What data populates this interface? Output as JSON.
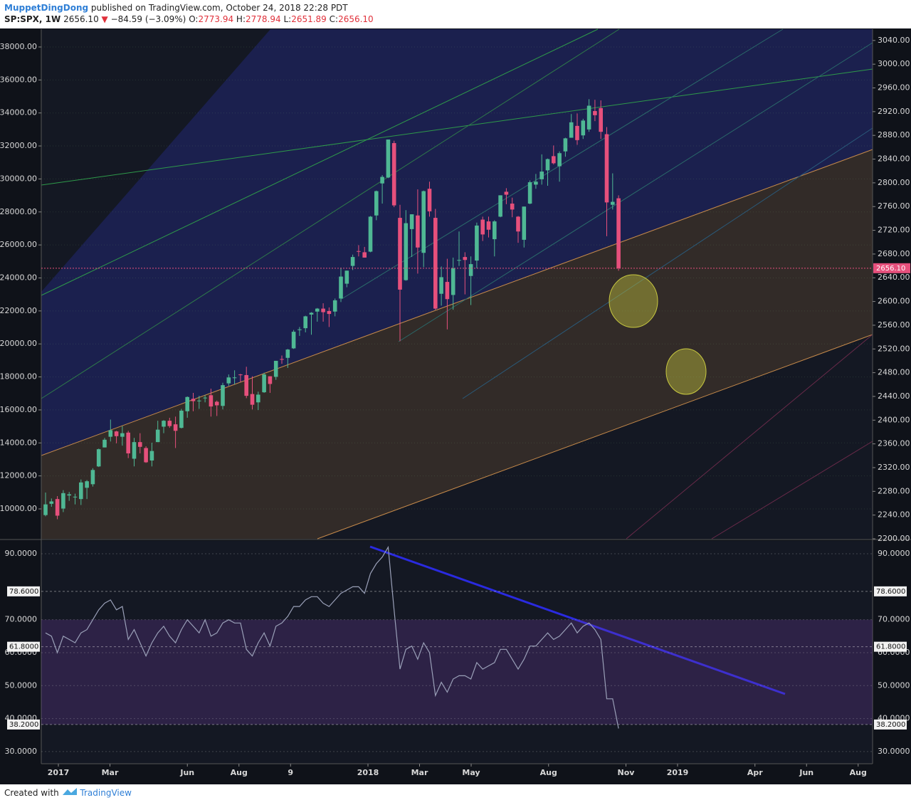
{
  "header": {
    "author": "MuppetDingDong",
    "published": "published on TradingView.com, October 24, 2018 22:28 PDT",
    "symbol": "SP:SPX, 1W",
    "last": "2656.10",
    "arrow": "▼",
    "change": "−84.59 (−3.09%)",
    "o_label": "O:",
    "o": "2773.94",
    "h_label": "H:",
    "h": "2778.94",
    "l_label": "L:",
    "l": "2651.89",
    "c_label": "C:",
    "c": "2656.10"
  },
  "footer": {
    "created": "Created with",
    "brand": "TradingView"
  },
  "chart_data": [
    {
      "type": "candlestick",
      "up_color": "#4fb894",
      "down_color": "#e6507c",
      "x": [
        "2016-12",
        "2016-12",
        "2016-12",
        "2017-01",
        "2017-01",
        "2017-01",
        "2017-01",
        "2017-02",
        "2017-02",
        "2017-02",
        "2017-02",
        "2017-03",
        "2017-03",
        "2017-03",
        "2017-03",
        "2017-03",
        "2017-04",
        "2017-04",
        "2017-04",
        "2017-04",
        "2017-05",
        "2017-05",
        "2017-05",
        "2017-05",
        "2017-06",
        "2017-06",
        "2017-06",
        "2017-06",
        "2017-06",
        "2017-07",
        "2017-07",
        "2017-07",
        "2017-07",
        "2017-08",
        "2017-08",
        "2017-08",
        "2017-08",
        "2017-09",
        "2017-09",
        "2017-09",
        "2017-09",
        "2017-09",
        "2017-10",
        "2017-10",
        "2017-10",
        "2017-10",
        "2017-11",
        "2017-11",
        "2017-11",
        "2017-11",
        "2017-12",
        "2017-12",
        "2017-12",
        "2017-12",
        "2017-12",
        "2018-01",
        "2018-01",
        "2018-01",
        "2018-01",
        "2018-02",
        "2018-02",
        "2018-02",
        "2018-02",
        "2018-03",
        "2018-03",
        "2018-03",
        "2018-03",
        "2018-03",
        "2018-04",
        "2018-04",
        "2018-04",
        "2018-04",
        "2018-05",
        "2018-05",
        "2018-05",
        "2018-05",
        "2018-06",
        "2018-06",
        "2018-06",
        "2018-06",
        "2018-06",
        "2018-07",
        "2018-07",
        "2018-07",
        "2018-07",
        "2018-08",
        "2018-08",
        "2018-08",
        "2018-08",
        "2018-08",
        "2018-09",
        "2018-09",
        "2018-09",
        "2018-09",
        "2018-10",
        "2018-10",
        "2018-10",
        "2018-10"
      ],
      "open": [
        2240,
        2259,
        2267,
        2251,
        2273,
        2270,
        2267,
        2286,
        2292,
        2322,
        2354,
        2372,
        2381,
        2372,
        2379,
        2335,
        2363,
        2353,
        2332,
        2363,
        2389,
        2399,
        2393,
        2387,
        2415,
        2436,
        2432,
        2438,
        2442,
        2431,
        2424,
        2462,
        2472,
        2477,
        2476,
        2444,
        2430,
        2447,
        2474,
        2473,
        2503,
        2505,
        2521,
        2552,
        2555,
        2578,
        2583,
        2588,
        2584,
        2583,
        2605,
        2630,
        2660,
        2685,
        2683,
        2684,
        2745,
        2799,
        2809,
        2867,
        2741,
        2636,
        2722,
        2745,
        2682,
        2790,
        2741,
        2613,
        2633,
        2611,
        2670,
        2675,
        2643,
        2669,
        2738,
        2735,
        2705,
        2743,
        2785,
        2765,
        2743,
        2704,
        2765,
        2797,
        2806,
        2821,
        2845,
        2828,
        2853,
        2876,
        2896,
        2880,
        2890,
        2921,
        2926,
        2882,
        2763,
        2773.94
      ],
      "high": [
        2278,
        2268,
        2272,
        2282,
        2279,
        2276,
        2300,
        2299,
        2319,
        2352,
        2370,
        2401,
        2382,
        2390,
        2382,
        2370,
        2378,
        2356,
        2362,
        2399,
        2400,
        2404,
        2406,
        2419,
        2440,
        2446,
        2441,
        2442,
        2453,
        2433,
        2463,
        2477,
        2484,
        2478,
        2490,
        2474,
        2448,
        2480,
        2474,
        2500,
        2509,
        2520,
        2552,
        2557,
        2576,
        2582,
        2589,
        2597,
        2590,
        2605,
        2657,
        2652,
        2679,
        2695,
        2692,
        2744,
        2787,
        2813,
        2873,
        2871,
        2763,
        2754,
        2747,
        2789,
        2787,
        2802,
        2756,
        2659,
        2672,
        2674,
        2718,
        2683,
        2676,
        2733,
        2743,
        2743,
        2737,
        2779,
        2791,
        2775,
        2744,
        2760,
        2804,
        2815,
        2848,
        2841,
        2863,
        2853,
        2876,
        2916,
        2917,
        2908,
        2941,
        2940,
        2939,
        2894,
        2816,
        2778.94
      ],
      "low": [
        2238,
        2254,
        2233,
        2245,
        2264,
        2258,
        2257,
        2267,
        2288,
        2321,
        2354,
        2364,
        2361,
        2357,
        2336,
        2322,
        2344,
        2328,
        2322,
        2363,
        2378,
        2387,
        2353,
        2386,
        2404,
        2415,
        2419,
        2430,
        2406,
        2407,
        2418,
        2458,
        2460,
        2464,
        2437,
        2418,
        2417,
        2446,
        2446,
        2468,
        2495,
        2488,
        2520,
        2542,
        2548,
        2544,
        2566,
        2566,
        2557,
        2575,
        2599,
        2624,
        2653,
        2676,
        2674,
        2683,
        2737,
        2765,
        2808,
        2759,
        2533,
        2635,
        2675,
        2647,
        2658,
        2743,
        2586,
        2593,
        2553,
        2586,
        2660,
        2612,
        2594,
        2656,
        2702,
        2708,
        2676,
        2742,
        2764,
        2742,
        2699,
        2691,
        2764,
        2790,
        2797,
        2795,
        2831,
        2802,
        2844,
        2876,
        2864,
        2874,
        2886,
        2904,
        2874,
        2710,
        2755,
        2651.89
      ],
      "close": [
        2258,
        2263,
        2239,
        2277,
        2275,
        2271,
        2295,
        2297,
        2316,
        2351,
        2367,
        2383,
        2373,
        2378,
        2344,
        2363,
        2355,
        2329,
        2348,
        2384,
        2399,
        2390,
        2382,
        2416,
        2439,
        2432,
        2433,
        2438,
        2423,
        2425,
        2459,
        2472,
        2472,
        2476,
        2441,
        2426,
        2443,
        2477,
        2461,
        2500,
        2502,
        2519,
        2549,
        2553,
        2575,
        2581,
        2588,
        2582,
        2579,
        2602,
        2642,
        2652,
        2675,
        2684,
        2674,
        2743,
        2786,
        2810,
        2873,
        2762,
        2620,
        2732,
        2747,
        2691,
        2786,
        2752,
        2588,
        2641,
        2604,
        2656,
        2670,
        2670,
        2663,
        2728,
        2713,
        2721,
        2735,
        2779,
        2780,
        2755,
        2718,
        2760,
        2801,
        2802,
        2819,
        2840,
        2833,
        2850,
        2875,
        2902,
        2872,
        2905,
        2930,
        2914,
        2886,
        2767,
        2768,
        2656.1
      ],
      "last_label": {
        "value": 2656.1,
        "label": "2656.10"
      },
      "ylim": [
        2200,
        3059
      ],
      "yticks": [
        {
          "value": 2200,
          "label": "2200.00"
        },
        {
          "value": 2240,
          "label": "2240.00"
        },
        {
          "value": 2280,
          "label": "2280.00"
        },
        {
          "value": 2320,
          "label": "2320.00"
        },
        {
          "value": 2360,
          "label": "2360.00"
        },
        {
          "value": 2400,
          "label": "2400.00"
        },
        {
          "value": 2440,
          "label": "2440.00"
        },
        {
          "value": 2480,
          "label": "2480.00"
        },
        {
          "value": 2520,
          "label": "2520.00"
        },
        {
          "value": 2560,
          "label": "2560.00"
        },
        {
          "value": 2600,
          "label": "2600.00"
        },
        {
          "value": 2640,
          "label": "2640.00"
        },
        {
          "value": 2680,
          "label": "2680.00"
        },
        {
          "value": 2720,
          "label": "2720.00"
        },
        {
          "value": 2760,
          "label": "2760.00"
        },
        {
          "value": 2800,
          "label": "2800.00"
        },
        {
          "value": 2840,
          "label": "2840.00"
        },
        {
          "value": 2880,
          "label": "2880.00"
        },
        {
          "value": 2920,
          "label": "2920.00"
        },
        {
          "value": 2960,
          "label": "2960.00"
        },
        {
          "value": 3000,
          "label": "3000.00"
        },
        {
          "value": 3040,
          "label": "3040.00"
        }
      ],
      "y2lim": [
        8188,
        39078
      ],
      "y2ticks": [
        {
          "value": 10000,
          "label": "10000.00"
        },
        {
          "value": 12000,
          "label": "12000.00"
        },
        {
          "value": 14000,
          "label": "14000.00"
        },
        {
          "value": 16000,
          "label": "16000.00"
        },
        {
          "value": 18000,
          "label": "18000.00"
        },
        {
          "value": 20000,
          "label": "20000.00"
        },
        {
          "value": 22000,
          "label": "22000.00"
        },
        {
          "value": 24000,
          "label": "24000.00"
        },
        {
          "value": 26000,
          "label": "26000.00"
        },
        {
          "value": 28000,
          "label": "28000.00"
        },
        {
          "value": 30000,
          "label": "30000.00"
        },
        {
          "value": 32000,
          "label": "32000.00"
        },
        {
          "value": 34000,
          "label": "34000.00"
        },
        {
          "value": 36000,
          "label": "36000.00"
        },
        {
          "value": 38000,
          "label": "38000.00"
        }
      ],
      "xticks": [
        {
          "value": "2017-01",
          "label": "2017"
        },
        {
          "value": "2017-03",
          "label": "Mar"
        },
        {
          "value": "2017-06",
          "label": "Jun"
        },
        {
          "value": "2017-08",
          "label": "Aug"
        },
        {
          "value": "2017-10",
          "label": "9"
        },
        {
          "value": "2018-01",
          "label": "2018"
        },
        {
          "value": "2018-03",
          "label": "Mar"
        },
        {
          "value": "2018-05",
          "label": "May"
        },
        {
          "value": "2018-08",
          "label": "Aug"
        },
        {
          "value": "2018-11",
          "label": "Nov"
        },
        {
          "value": "2019-01",
          "label": "2019"
        },
        {
          "value": "2019-04",
          "label": "Apr"
        },
        {
          "value": "2019-06",
          "label": "Jun"
        },
        {
          "value": "2019-08",
          "label": "Aug"
        }
      ]
    },
    {
      "type": "line",
      "color": "#9aa0b8",
      "values": [
        66,
        65,
        60,
        65,
        64,
        63,
        66,
        67,
        70,
        73,
        75,
        76,
        73,
        74,
        64,
        67,
        63,
        59,
        63,
        66,
        68,
        65,
        63,
        67,
        70,
        68,
        66,
        70,
        65,
        66,
        69,
        70,
        69,
        69,
        61,
        59,
        63,
        66,
        62,
        68,
        69,
        71,
        74,
        74,
        76,
        77,
        77,
        75,
        74,
        76,
        78,
        79,
        80,
        80,
        78,
        84,
        87,
        89,
        92,
        73,
        55,
        61,
        62,
        58,
        63,
        60,
        47,
        51,
        48,
        52,
        53,
        53,
        52,
        57,
        55,
        56,
        57,
        61,
        61,
        58,
        55,
        58,
        62,
        62,
        64,
        66,
        64,
        65,
        67,
        69,
        66,
        68,
        69,
        67,
        64,
        46,
        46,
        37
      ],
      "ylim": [
        26.3,
        93.9
      ],
      "yticks": [
        {
          "value": 30,
          "label": "30.0000"
        },
        {
          "value": 40,
          "label": "40.0000"
        },
        {
          "value": 50,
          "label": "50.0000"
        },
        {
          "value": 60,
          "label": "60.0000"
        },
        {
          "value": 70,
          "label": "70.0000"
        },
        {
          "value": 90,
          "label": "90.0000"
        }
      ],
      "levels": [
        {
          "value": 38.2,
          "label": "38.2000"
        },
        {
          "value": 61.8,
          "label": "61.8000"
        },
        {
          "value": 78.6,
          "label": "78.6000"
        }
      ]
    }
  ]
}
